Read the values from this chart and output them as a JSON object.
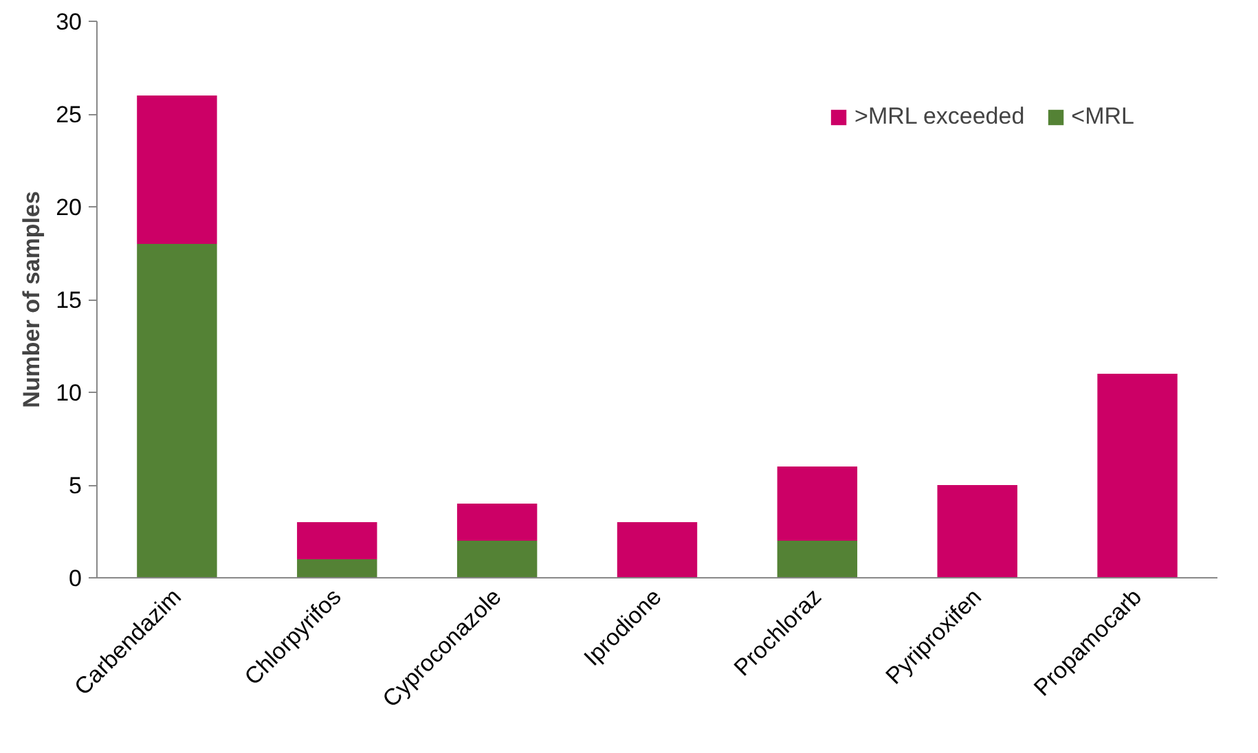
{
  "chart_data": {
    "type": "bar",
    "ylabel": "Number of samples",
    "categories": [
      "Carbendazim",
      "Chlorpyrifos",
      "Cyproconazole",
      "Iprodione",
      "Prochloraz",
      "Pyriproxifen",
      "Propamocarb"
    ],
    "stacked": true,
    "series": [
      {
        "name": "<MRL",
        "color": "#548235",
        "values": [
          18,
          1,
          2,
          0,
          2,
          0,
          0
        ]
      },
      {
        "name": ">MRL exceeded",
        "color": "#cc0066",
        "values": [
          8,
          2,
          2,
          3,
          4,
          5,
          11
        ]
      }
    ],
    "ylim": [
      0,
      30
    ],
    "yticks": [
      0,
      5,
      10,
      15,
      20,
      25,
      30
    ],
    "grid": false,
    "legend": "top right"
  }
}
